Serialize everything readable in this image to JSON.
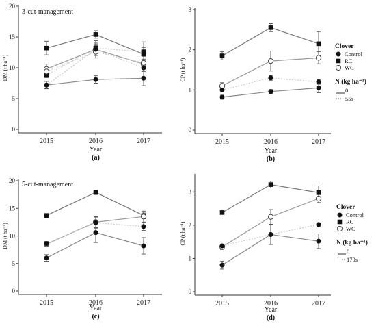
{
  "colors": {
    "axis": "#333333",
    "rc": "#777777",
    "wc": "#999999",
    "control": "#888888",
    "n_dotted": "#cccccc",
    "marker": "#111111"
  },
  "legend": {
    "clover_title": "Clover",
    "entries": [
      "Control",
      "RC",
      "WC"
    ],
    "n_title": "N (kg ha⁻¹)",
    "n_entries_top": [
      "0",
      "55s"
    ],
    "n_entries_bottom": [
      "0",
      "170s"
    ]
  },
  "chart_data": [
    {
      "type": "line",
      "panel": "(a)",
      "title": "3-cut-management",
      "xlabel": "Year",
      "ylabel": "DM (t ha⁻¹)",
      "categories": [
        "2015",
        "2016",
        "2017"
      ],
      "ylim": [
        0,
        20
      ],
      "yticks": [
        0,
        5,
        10,
        15,
        20
      ],
      "grid": false,
      "series": [
        {
          "name": "RC",
          "nlevel": "0",
          "marker": "square",
          "values": [
            13.2,
            15.4,
            12.2
          ],
          "err": [
            1.1,
            0.6,
            1.1
          ]
        },
        {
          "name": "RC",
          "nlevel": "55s",
          "marker": "square",
          "values": [
            8.8,
            13.2,
            12.6
          ],
          "err": [
            0.4,
            0.6,
            1.6
          ]
        },
        {
          "name": "WC",
          "nlevel": "0",
          "marker": "open-circle",
          "values": [
            9.8,
            13.0,
            10.6
          ],
          "err": [
            0.8,
            1.4,
            0.8
          ]
        },
        {
          "name": "WC",
          "nlevel": "55s",
          "marker": "open-circle",
          "values": [
            9.4,
            12.6,
            10.8
          ],
          "err": [
            0.6,
            1.0,
            0.8
          ]
        },
        {
          "name": "Control",
          "nlevel": "0",
          "marker": "filled-circle",
          "values": [
            7.2,
            8.1,
            8.3
          ],
          "err": [
            0.6,
            0.6,
            1.2
          ]
        },
        {
          "name": "Control",
          "nlevel": "55s",
          "marker": "filled-circle",
          "values": [
            7.2,
            13.0,
            10.0
          ],
          "err": [
            0.6,
            1.0,
            0.6
          ]
        }
      ]
    },
    {
      "type": "line",
      "panel": "(b)",
      "title": "",
      "xlabel": "Year",
      "ylabel": "CP (t ha⁻¹)",
      "categories": [
        "2015",
        "2016",
        "2017"
      ],
      "ylim": [
        0,
        3
      ],
      "yticks": [
        0,
        1,
        2,
        3
      ],
      "grid": false,
      "series": [
        {
          "name": "RC",
          "nlevel": "0",
          "marker": "square",
          "values": [
            1.85,
            2.55,
            2.15
          ],
          "err": [
            0.1,
            0.1,
            0.3
          ]
        },
        {
          "name": "WC",
          "nlevel": "0",
          "marker": "open-circle",
          "values": [
            1.1,
            1.72,
            1.8
          ],
          "err": [
            0.08,
            0.25,
            0.15
          ]
        },
        {
          "name": "Control",
          "nlevel": "55s",
          "marker": "filled-circle",
          "values": [
            1.0,
            1.3,
            1.2
          ],
          "err": [
            0.05,
            0.06,
            0.06
          ]
        },
        {
          "name": "Control",
          "nlevel": "0",
          "marker": "filled-circle",
          "values": [
            0.82,
            0.96,
            1.05
          ],
          "err": [
            0.05,
            0.05,
            0.12
          ]
        }
      ]
    },
    {
      "type": "line",
      "panel": "(c)",
      "title": "5-cut-management",
      "xlabel": "Year",
      "ylabel": "DM (t ha⁻¹)",
      "categories": [
        "2015",
        "2016",
        "2017"
      ],
      "ylim": [
        0,
        20
      ],
      "yticks": [
        0,
        5,
        10,
        15,
        20
      ],
      "grid": false,
      "series": [
        {
          "name": "RC",
          "nlevel": "0",
          "marker": "square",
          "values": [
            13.7,
            17.9,
            13.7
          ],
          "err": [
            0.3,
            0.4,
            0.6
          ]
        },
        {
          "name": "WC",
          "nlevel": "0",
          "marker": "open-circle",
          "values": [
            8.5,
            12.5,
            13.5
          ],
          "err": [
            0.3,
            1.0,
            1.0
          ]
        },
        {
          "name": "Control",
          "nlevel": "170s",
          "marker": "filled-circle",
          "values": [
            8.6,
            12.4,
            11.7
          ],
          "err": [
            0.4,
            1.0,
            0.7
          ]
        },
        {
          "name": "Control",
          "nlevel": "0",
          "marker": "filled-circle",
          "values": [
            6.0,
            10.6,
            8.2
          ],
          "err": [
            0.6,
            1.8,
            1.5
          ]
        }
      ]
    },
    {
      "type": "line",
      "panel": "(d)",
      "title": "",
      "xlabel": "Year",
      "ylabel": "CP (t ha⁻¹)",
      "categories": [
        "2015",
        "2016",
        "2017"
      ],
      "ylim": [
        0,
        3.5
      ],
      "yticks": [
        0,
        1,
        2,
        3
      ],
      "grid": false,
      "series": [
        {
          "name": "RC",
          "nlevel": "0",
          "marker": "square",
          "values": [
            2.38,
            3.22,
            2.98
          ],
          "err": [
            0.05,
            0.1,
            0.2
          ]
        },
        {
          "name": "WC",
          "nlevel": "0",
          "marker": "open-circle",
          "values": [
            1.35,
            2.25,
            2.8
          ],
          "err": [
            0.08,
            0.22,
            0.12
          ]
        },
        {
          "name": "Control",
          "nlevel": "170s",
          "marker": "filled-circle",
          "values": [
            1.38,
            1.72,
            2.02
          ],
          "err": [
            0.05,
            0.3,
            0.05
          ]
        },
        {
          "name": "Control",
          "nlevel": "0",
          "marker": "filled-circle",
          "values": [
            0.8,
            1.72,
            1.52
          ],
          "err": [
            0.12,
            0.3,
            0.22
          ]
        }
      ]
    }
  ]
}
